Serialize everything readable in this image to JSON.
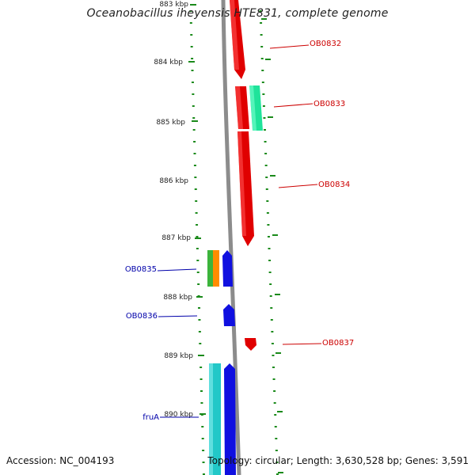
{
  "title": "Oceanobacillus iheyensis HTE831, complete genome",
  "footer": {
    "accession": "Accession: NC_004193",
    "summary": "Topology: circular; Length: 3,630,528 bp; Genes: 3,591"
  },
  "colors": {
    "backbone": "#8c8c8c",
    "tick": "#1a8a1a",
    "forward_gene": "#e00000",
    "forward_other": "#1fe39a",
    "reverse_gene": "#1010e0",
    "reverse_other": "#22c8c8",
    "label_forward": "#cc0000",
    "label_reverse": "#0000aa"
  },
  "ruler": {
    "unit": "kbp",
    "ticks": [
      "883 kbp",
      "884 kbp",
      "885 kbp",
      "886 kbp",
      "887 kbp",
      "888 kbp",
      "889 kbp",
      "890 kbp"
    ]
  },
  "features": {
    "forward": [
      {
        "label": "OB0832",
        "color": "#e00000"
      },
      {
        "label": "OB0833",
        "color": "#e00000"
      },
      {
        "label": "OB0834",
        "color": "#e00000"
      },
      {
        "label": "OB0837",
        "color": "#e00000"
      }
    ],
    "forward_unlabeled": [
      {
        "color": "#1fe39a"
      }
    ],
    "reverse": [
      {
        "label": "OB0835",
        "color": "#1010e0"
      },
      {
        "label": "OB0836",
        "color": "#1010e0"
      },
      {
        "label": "fruA",
        "color": "#1010e0"
      }
    ],
    "reverse_unlabeled": [
      {
        "color": "#3cb43c"
      },
      {
        "color": "#ff8c00"
      },
      {
        "color": "#22c8c8"
      }
    ]
  }
}
